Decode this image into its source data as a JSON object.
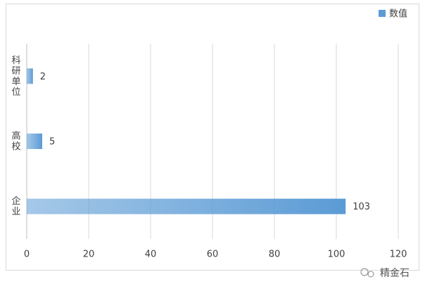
{
  "chart_data": {
    "type": "hbar",
    "categories": [
      "科研单位",
      "高校",
      "企业"
    ],
    "series": [
      {
        "name": "数值",
        "color": "#5b9bd5",
        "values": [
          2,
          5,
          103
        ]
      }
    ],
    "xlim": [
      0,
      120
    ],
    "xticks": [
      0,
      20,
      40,
      60,
      80,
      100,
      120
    ],
    "grid": true,
    "legend": "top-right"
  },
  "watermark": "精金石"
}
